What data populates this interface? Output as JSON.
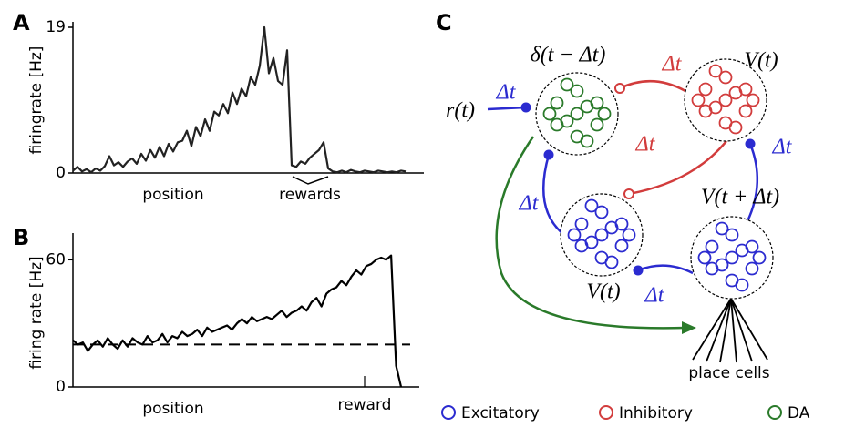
{
  "chart_data": [
    {
      "type": "line",
      "panel": "A",
      "ylabel": "firingrate [Hz]",
      "xlabel": "position",
      "annotation": "rewards",
      "color": "#222222",
      "ylim": [
        0,
        19
      ],
      "yticks": [
        0,
        19
      ],
      "values": [
        0.3,
        0.8,
        0.2,
        0.5,
        0.1,
        0.6,
        0.3,
        0.9,
        2.2,
        1.0,
        1.4,
        0.8,
        1.5,
        1.9,
        1.2,
        2.5,
        1.6,
        3.0,
        2.0,
        3.4,
        2.2,
        3.8,
        2.8,
        4.0,
        4.2,
        5.5,
        3.5,
        6.0,
        4.8,
        7.0,
        5.5,
        8.0,
        7.5,
        9.0,
        7.8,
        10.5,
        9.0,
        11.0,
        10.0,
        12.5,
        11.5,
        14.0,
        19.0,
        13.0,
        15.0,
        12.0,
        11.5,
        16.0,
        1.0,
        0.8,
        1.5,
        1.2,
        2.0,
        2.5,
        3.0,
        4.0,
        0.6,
        0.2,
        0.1,
        0.3,
        0.1,
        0.4,
        0.2,
        0.1,
        0.3,
        0.2,
        0.1,
        0.3,
        0.2,
        0.1,
        0.2,
        0.1,
        0.3,
        0.2
      ]
    },
    {
      "type": "line",
      "panel": "B",
      "ylabel": "firing rate [Hz]",
      "xlabel": "position",
      "annotation": "reward",
      "color": "#000000",
      "ylim": [
        0,
        70
      ],
      "yticks": [
        0,
        60
      ],
      "reference_line": 20,
      "values": [
        22,
        20,
        21,
        17,
        20,
        22,
        19,
        23,
        20,
        18,
        22,
        19,
        23,
        21,
        20,
        24,
        21,
        22,
        25,
        21,
        24,
        23,
        26,
        24,
        25,
        27,
        24,
        28,
        26,
        27,
        28,
        29,
        27,
        30,
        32,
        30,
        33,
        31,
        32,
        33,
        32,
        34,
        36,
        33,
        35,
        36,
        38,
        36,
        40,
        42,
        38,
        44,
        46,
        47,
        50,
        48,
        52,
        55,
        53,
        57,
        58,
        60,
        61,
        60,
        62,
        10,
        0
      ]
    }
  ],
  "diagram": {
    "panel": "C",
    "nodes": [
      {
        "label": "δ(t − Δt)"
      },
      {
        "label": "V(t)"
      },
      {
        "label": "V(t)"
      },
      {
        "label": "V(t + Δt)"
      }
    ],
    "input": "r(t)",
    "delays": [
      "Δt",
      "Δt",
      "Δt",
      "Δt",
      "Δt",
      "Δt"
    ],
    "output": "place cells",
    "legend": [
      "Excitatory",
      "Inhibitory",
      "DA"
    ]
  }
}
